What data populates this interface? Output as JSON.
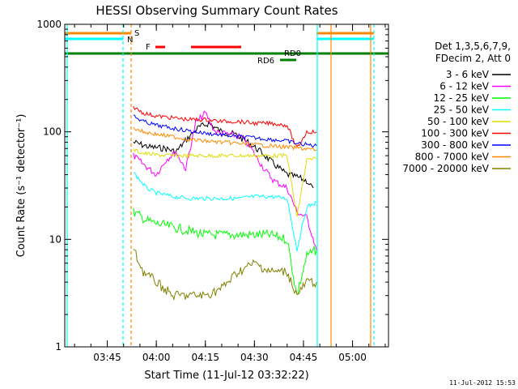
{
  "chart_data": {
    "type": "line",
    "title": "HESSI Observing Summary Count Rates",
    "xlabel": "Start Time (11-Jul-12 03:32:22)",
    "ylabel": "Count Rate (s⁻¹ detector⁻¹)",
    "yscale": "log",
    "ylim": [
      1,
      1000
    ],
    "xlim": [
      "03:32",
      "05:11"
    ],
    "x_ticks": [
      "03:45",
      "04:00",
      "04:15",
      "04:30",
      "04:45",
      "05:00"
    ],
    "y_ticks": [
      "1",
      "10",
      "100",
      "1000"
    ],
    "grid": false,
    "legend_position": "right",
    "legend_header": [
      "Det 1,3,5,6,7,9,",
      "FDecim 2, Att 0"
    ],
    "flag_labels": {
      "s": "S",
      "n": "N",
      "f": "F",
      "rd6": "RD6",
      "rd0": "RD0"
    },
    "series": [
      {
        "name": "3 - 6 keV",
        "color": "#000000",
        "x": [
          "03:53",
          "03:58",
          "04:03",
          "04:06",
          "04:10",
          "04:13",
          "04:16",
          "04:20",
          "04:24",
          "04:28",
          "04:32",
          "04:36",
          "04:40",
          "04:43",
          "04:46",
          "04:48"
        ],
        "values": [
          80,
          72,
          70,
          65,
          90,
          110,
          120,
          100,
          95,
          80,
          65,
          50,
          40,
          38,
          35,
          30
        ]
      },
      {
        "name": "6 - 12 keV",
        "color": "#ff00ff",
        "x": [
          "03:53",
          "03:56",
          "04:00",
          "04:03",
          "04:06",
          "04:09",
          "04:12",
          "04:15",
          "04:18",
          "04:22",
          "04:26",
          "04:29",
          "04:33",
          "04:36",
          "04:40",
          "04:43",
          "04:46",
          "04:49"
        ],
        "values": [
          60,
          50,
          40,
          55,
          65,
          45,
          120,
          150,
          100,
          95,
          90,
          70,
          45,
          35,
          30,
          18,
          16,
          8
        ]
      },
      {
        "name": "12 - 25 keV",
        "color": "#00ff00",
        "x": [
          "03:53",
          "03:57",
          "04:00",
          "04:05",
          "04:10",
          "04:15",
          "04:20",
          "04:25",
          "04:30",
          "04:35",
          "04:40",
          "04:43",
          "04:46",
          "04:49"
        ],
        "values": [
          18,
          15,
          14,
          13,
          12,
          11,
          11,
          11,
          11,
          11,
          10,
          3,
          7,
          8
        ]
      },
      {
        "name": "25 - 50 keV",
        "color": "#00ffff",
        "x": [
          "03:53",
          "03:57",
          "04:00",
          "04:05",
          "04:10",
          "04:15",
          "04:20",
          "04:25",
          "04:30",
          "04:35",
          "04:40",
          "04:43",
          "04:46",
          "04:49"
        ],
        "values": [
          42,
          30,
          27,
          25,
          24,
          24,
          24,
          24,
          25,
          25,
          24,
          8,
          20,
          22
        ]
      },
      {
        "name": "50 - 100 keV",
        "color": "#dddd00",
        "x": [
          "03:53",
          "03:56",
          "04:00",
          "04:05",
          "04:10",
          "04:15",
          "04:20",
          "04:25",
          "04:30",
          "04:35",
          "04:40",
          "04:43",
          "04:46",
          "04:49"
        ],
        "values": [
          68,
          63,
          61,
          60,
          60,
          60,
          60,
          60,
          60,
          60,
          60,
          16,
          55,
          56
        ]
      },
      {
        "name": "100 - 300 keV",
        "color": "#ff0000",
        "x": [
          "03:53",
          "03:56",
          "04:00",
          "04:05",
          "04:10",
          "04:15",
          "04:20",
          "04:25",
          "04:30",
          "04:35",
          "04:40",
          "04:43",
          "04:46",
          "04:49"
        ],
        "values": [
          170,
          150,
          140,
          135,
          130,
          130,
          125,
          125,
          120,
          120,
          115,
          70,
          100,
          100
        ]
      },
      {
        "name": "300 - 800 keV",
        "color": "#0000ff",
        "x": [
          "03:53",
          "03:56",
          "04:00",
          "04:05",
          "04:10",
          "04:15",
          "04:20",
          "04:25",
          "04:30",
          "04:35",
          "04:40",
          "04:43",
          "04:46",
          "04:49"
        ],
        "values": [
          140,
          125,
          115,
          108,
          102,
          97,
          94,
          90,
          88,
          85,
          82,
          78,
          76,
          74
        ]
      },
      {
        "name": "800 - 7000 keV",
        "color": "#ff8800",
        "x": [
          "03:53",
          "03:56",
          "04:00",
          "04:05",
          "04:10",
          "04:15",
          "04:20",
          "04:25",
          "04:30",
          "04:35",
          "04:40",
          "04:45",
          "04:49"
        ],
        "values": [
          110,
          100,
          95,
          90,
          85,
          82,
          80,
          78,
          76,
          74,
          72,
          70,
          68
        ]
      },
      {
        "name": "7000 - 20000 keV",
        "color": "#808000",
        "x": [
          "03:53",
          "03:56",
          "04:00",
          "04:05",
          "04:10",
          "04:15",
          "04:20",
          "04:25",
          "04:30",
          "04:35",
          "04:40",
          "04:43",
          "04:46",
          "04:49"
        ],
        "values": [
          8,
          5,
          4,
          3,
          3,
          3,
          3.5,
          5,
          6,
          5,
          5,
          3,
          4,
          4
        ]
      }
    ]
  },
  "footer": {
    "timestamp": "11-Jul-2012 15:53"
  }
}
